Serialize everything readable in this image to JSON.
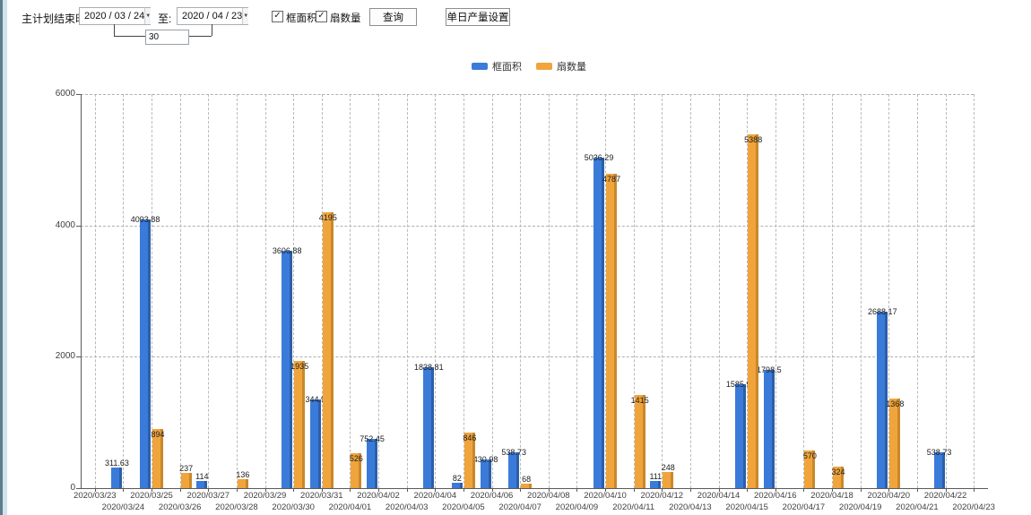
{
  "toolbar": {
    "plan_end_label": "主计划结束时间:",
    "date_from": "2020 / 03 / 24",
    "to_label": "至:",
    "date_to": "2020 / 04 / 23",
    "interval_days": "30",
    "checkboxes": [
      {
        "label": "框面积",
        "checked": true,
        "glyph": "✓"
      },
      {
        "label": "扇数量",
        "checked": true,
        "glyph": "✓"
      }
    ],
    "query_button": "查询",
    "daily_output_button": "单日产量设置"
  },
  "chart_data": {
    "type": "bar",
    "title": "",
    "xlabel": "",
    "ylabel": "",
    "ylim": [
      0,
      6000
    ],
    "yticks": [
      0,
      2000,
      4000,
      6000
    ],
    "grid": true,
    "legend_position": "top",
    "categories": [
      "2020/03/23",
      "2020/03/24",
      "2020/03/25",
      "2020/03/26",
      "2020/03/27",
      "2020/03/28",
      "2020/03/29",
      "2020/03/30",
      "2020/03/31",
      "2020/04/01",
      "2020/04/02",
      "2020/04/03",
      "2020/04/04",
      "2020/04/05",
      "2020/04/06",
      "2020/04/07",
      "2020/04/08",
      "2020/04/09",
      "2020/04/10",
      "2020/04/11",
      "2020/04/12",
      "2020/04/13",
      "2020/04/14",
      "2020/04/15",
      "2020/04/16",
      "2020/04/17",
      "2020/04/18",
      "2020/04/19",
      "2020/04/20",
      "2020/04/21",
      "2020/04/22",
      "2020/04/23"
    ],
    "series": [
      {
        "name": "框面积",
        "color": "#3a7bd9",
        "edge_color": "#2c5fa8",
        "values": [
          null,
          311.63,
          4093.88,
          null,
          114,
          null,
          null,
          3606.88,
          1344.95,
          null,
          752.45,
          null,
          1838.81,
          82,
          430.98,
          538.73,
          null,
          null,
          5036.29,
          null,
          111,
          null,
          null,
          1585.96,
          1798.5,
          null,
          null,
          null,
          2688.17,
          null,
          538.73,
          null
        ]
      },
      {
        "name": "扇数量",
        "color": "#f0a43c",
        "edge_color": "#c9882a",
        "values": [
          null,
          null,
          894,
          237,
          null,
          136,
          null,
          1935,
          4195,
          526,
          null,
          null,
          null,
          846,
          null,
          68,
          null,
          null,
          4787,
          1415,
          248,
          null,
          null,
          5388,
          null,
          570,
          324,
          null,
          1368,
          null,
          null,
          null
        ]
      }
    ]
  }
}
